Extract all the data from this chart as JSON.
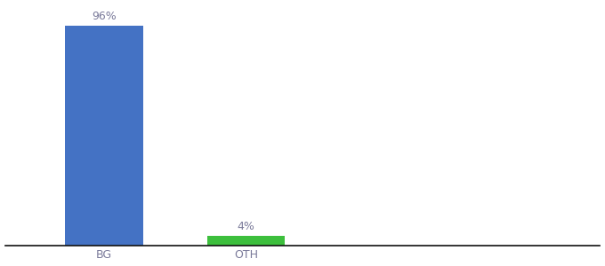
{
  "categories": [
    "BG",
    "OTH"
  ],
  "values": [
    96,
    4
  ],
  "bar_colors": [
    "#4472c4",
    "#3dbf3d"
  ],
  "bar_labels": [
    "96%",
    "4%"
  ],
  "background_color": "#ffffff",
  "text_color": "#7a7a9a",
  "label_fontsize": 9,
  "tick_fontsize": 9,
  "ylim": [
    0,
    105
  ],
  "bar_width": 0.55,
  "x_positions": [
    1,
    2
  ],
  "xlim": [
    0.3,
    4.5
  ],
  "figsize": [
    6.8,
    3.0
  ],
  "dpi": 100
}
